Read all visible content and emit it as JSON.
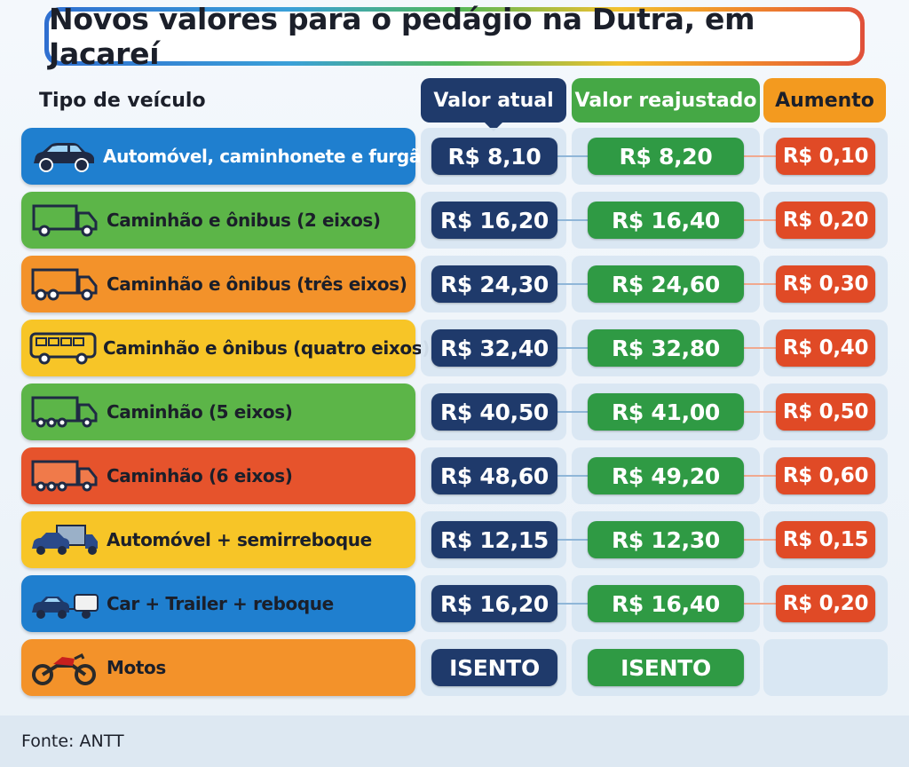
{
  "title": "Novos valores para o pedágio na Dutra, em Jacareí",
  "headers": {
    "vehicle": "Tipo de veículo",
    "current": "Valor atual",
    "adjusted": "Valor reajustado",
    "increase": "Aumento"
  },
  "colors": {
    "blue": "#1f7fcf",
    "green": "#5cb548",
    "orange": "#f3922a",
    "yellow": "#f7c527",
    "red": "#e6532c",
    "navy": "#1f3a6b",
    "pill_green": "#2f9a44",
    "pill_red": "#e04a26"
  },
  "rows": [
    {
      "label": "Automóvel, caminhonete e furgão",
      "icon": "car-icon",
      "color": "blue",
      "current": "R$ 8,10",
      "adjusted": "R$ 8,20",
      "increase": "R$ 0,10"
    },
    {
      "label": "Caminhão e ônibus (2 eixos)",
      "icon": "truck-2-axles-icon",
      "color": "green",
      "current": "R$ 16,20",
      "adjusted": "R$ 16,40",
      "increase": "R$ 0,20"
    },
    {
      "label": "Caminhão e ônibus (três eixos)",
      "icon": "truck-3-axles-icon",
      "color": "orange",
      "current": "R$ 24,30",
      "adjusted": "R$ 24,60",
      "increase": "R$ 0,30"
    },
    {
      "label": "Caminhão e ônibus (quatro eixos)",
      "icon": "bus-icon",
      "color": "yellow",
      "current": "R$ 32,40",
      "adjusted": "R$ 32,80",
      "increase": "R$ 0,40"
    },
    {
      "label": "Caminhão (5 eixos)",
      "icon": "truck-5-axles-icon",
      "color": "green",
      "current": "R$ 40,50",
      "adjusted": "R$ 41,00",
      "increase": "R$ 0,50"
    },
    {
      "label": "Caminhão (6 eixos)",
      "icon": "truck-6-axles-icon",
      "color": "red",
      "current": "R$ 48,60",
      "adjusted": "R$ 49,20",
      "increase": "R$ 0,60"
    },
    {
      "label": "Automóvel + semirreboque",
      "icon": "car-semitrailer-icon",
      "color": "yellow",
      "current": "R$ 12,15",
      "adjusted": "R$ 12,30",
      "increase": "R$ 0,15"
    },
    {
      "label": "Car + Trailer + reboque",
      "icon": "car-trailer-icon",
      "color": "blue",
      "current": "R$ 16,20",
      "adjusted": "R$ 16,40",
      "increase": "R$ 0,20"
    },
    {
      "label": "Motos",
      "icon": "motorcycle-icon",
      "color": "orange",
      "current": "ISENTO",
      "adjusted": "ISENTO",
      "increase": ""
    }
  ],
  "source": "Fonte: ANTT"
}
